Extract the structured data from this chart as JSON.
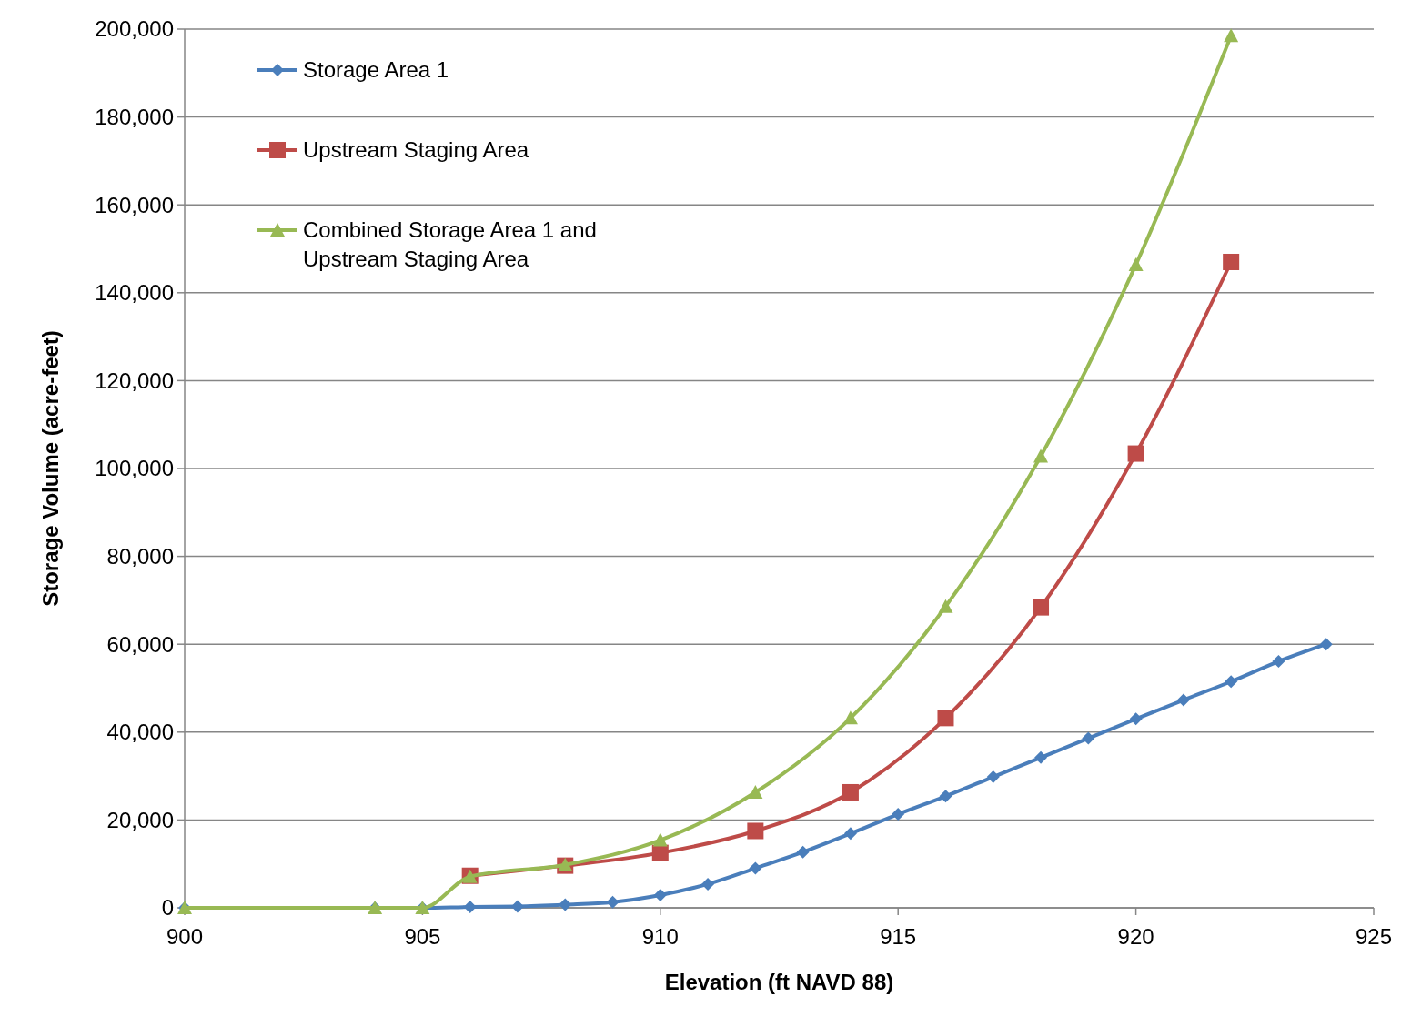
{
  "chart_data": {
    "type": "line",
    "xlabel": "Elevation (ft NAVD 88)",
    "ylabel": "Storage Volume (acre-feet)",
    "xlim": [
      900,
      925
    ],
    "xticks": [
      900,
      905,
      910,
      915,
      920,
      925
    ],
    "ylim": [
      0,
      200000
    ],
    "yticks": [
      {
        "value": 0,
        "label": "0"
      },
      {
        "value": 20000,
        "label": "20,000"
      },
      {
        "value": 40000,
        "label": "40,000"
      },
      {
        "value": 60000,
        "label": "60,000"
      },
      {
        "value": 80000,
        "label": "80,000"
      },
      {
        "value": 100000,
        "label": "100,000"
      },
      {
        "value": 120000,
        "label": "120,000"
      },
      {
        "value": 140000,
        "label": "140,000"
      },
      {
        "value": 160000,
        "label": "160,000"
      },
      {
        "value": 180000,
        "label": "180,000"
      },
      {
        "value": 200000,
        "label": "200,000"
      }
    ],
    "grid": "y",
    "legend": "top left",
    "series": [
      {
        "name": "Storage Area 1",
        "color": "#4a7ebb",
        "marker": "diamond",
        "x": [
          900,
          904,
          905,
          906,
          907,
          908,
          909,
          910,
          911,
          912,
          913,
          914,
          915,
          916,
          917,
          918,
          919,
          920,
          921,
          922,
          923,
          924
        ],
        "values": [
          0,
          0,
          0,
          200,
          300,
          700,
          1300,
          2900,
          5400,
          9000,
          12700,
          16900,
          21300,
          25400,
          29800,
          34200,
          38600,
          43000,
          47300,
          51500,
          56100,
          60000
        ]
      },
      {
        "name": "Upstream Staging Area",
        "color": "#be4b48",
        "marker": "square",
        "x": [
          906,
          908,
          910,
          912,
          914,
          916,
          918,
          920,
          922
        ],
        "values": [
          7300,
          9600,
          12500,
          17500,
          26300,
          43200,
          68400,
          103400,
          147000
        ]
      },
      {
        "name": "Combined Storage Area 1 and\nUpstream Staging Area",
        "color": "#98b954",
        "marker": "triangle",
        "x": [
          900,
          904,
          905,
          906,
          908,
          910,
          912,
          914,
          916,
          918,
          920,
          922
        ],
        "values": [
          0,
          0,
          0,
          7100,
          9800,
          15400,
          26300,
          43200,
          68600,
          102800,
          146400,
          198500
        ]
      }
    ]
  }
}
